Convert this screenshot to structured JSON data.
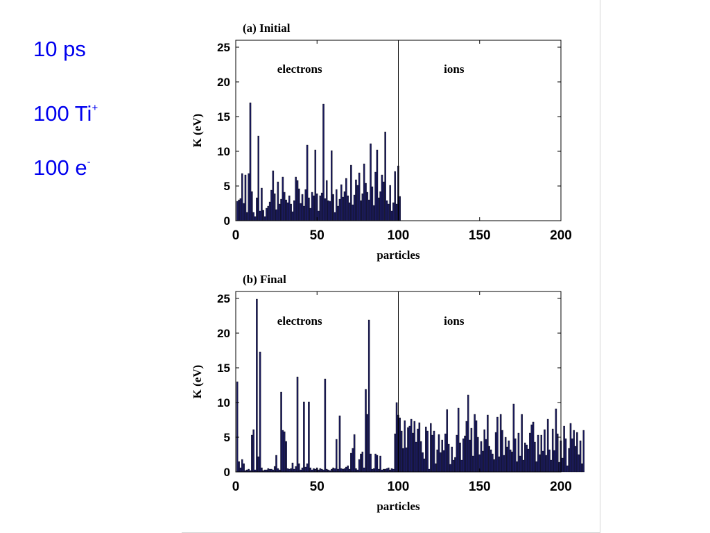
{
  "slide": {
    "text_color": "#0000ee",
    "time": "10 ps",
    "ions": {
      "base": "100 Ti",
      "sup": "+"
    },
    "electrons": {
      "base": "100 e",
      "sup": "-"
    }
  },
  "chart_style": {
    "bar_color": "#1a1a5e",
    "axis_color": "#000000"
  },
  "chart_data": [
    {
      "type": "bar",
      "title": "(a) Initial",
      "xlabel": "particles",
      "ylabel": "K (eV)",
      "xlim": [
        0,
        200
      ],
      "ylim": [
        0,
        26
      ],
      "xticks": [
        0,
        50,
        100,
        150,
        200
      ],
      "yticks": [
        0,
        5,
        10,
        15,
        20,
        25
      ],
      "annotations": [
        "electrons",
        "ions"
      ],
      "divider_x": 100,
      "x_start": 1,
      "values": [
        2.8,
        3.0,
        3.2,
        6.8,
        2.5,
        6.6,
        1.2,
        6.8,
        17.0,
        4.2,
        1.2,
        0.6,
        3.3,
        12.2,
        1.4,
        4.7,
        1.5,
        0.6,
        1.8,
        2.1,
        2.7,
        4.4,
        7.2,
        3.9,
        1.6,
        5.6,
        2.4,
        3.1,
        6.3,
        4.1,
        3.0,
        2.6,
        3.6,
        2.4,
        1.3,
        2.9,
        6.3,
        5.8,
        4.6,
        2.5,
        3.8,
        2.1,
        4.5,
        10.9,
        3.3,
        1.8,
        4.1,
        3.6,
        10.2,
        3.9,
        1.4,
        3.6,
        4.0,
        16.8,
        3.2,
        5.8,
        2.9,
        2.8,
        10.1,
        3.8,
        1.2,
        4.5,
        2.1,
        3.1,
        5.2,
        3.4,
        4.2,
        6.1,
        3.6,
        2.6,
        8.0,
        2.3,
        3.7,
        5.9,
        5.1,
        6.9,
        2.9,
        3.9,
        8.2,
        5.4,
        4.1,
        3.0,
        11.1,
        4.9,
        2.2,
        7.0,
        10.2,
        3.3,
        4.2,
        6.6,
        5.6,
        12.8,
        2.9,
        2.4,
        5.1,
        1.4,
        2.6,
        7.1,
        2.4,
        7.9,
        3.5
      ]
    },
    {
      "type": "bar",
      "title": "(b) Final",
      "xlabel": "particles",
      "ylabel": "K (eV)",
      "xlim": [
        0,
        200
      ],
      "ylim": [
        0,
        26
      ],
      "xticks": [
        0,
        50,
        100,
        150,
        200
      ],
      "yticks": [
        0,
        5,
        10,
        15,
        20,
        25
      ],
      "annotations": [
        "electrons",
        "ions"
      ],
      "divider_x": 100,
      "x_start": 1,
      "values": [
        13.0,
        1.5,
        0.6,
        1.8,
        1.2,
        0.2,
        0.3,
        0.4,
        0.2,
        5.3,
        6.1,
        0.3,
        24.9,
        2.2,
        17.3,
        0.6,
        0.2,
        0.3,
        0.3,
        0.5,
        0.4,
        0.4,
        0.3,
        0.8,
        2.4,
        0.5,
        0.3,
        11.5,
        6.0,
        5.8,
        4.4,
        0.5,
        0.4,
        0.5,
        1.3,
        0.4,
        0.8,
        13.7,
        1.2,
        0.3,
        0.6,
        10.1,
        0.7,
        1.2,
        10.1,
        0.6,
        0.3,
        0.5,
        0.4,
        0.6,
        0.3,
        0.5,
        0.4,
        0.3,
        13.4,
        0.4,
        0.3,
        0.2,
        0.4,
        0.6,
        0.5,
        4.7,
        0.4,
        8.1,
        0.5,
        0.4,
        0.5,
        0.7,
        0.9,
        0.4,
        2.7,
        3.4,
        5.4,
        0.5,
        0.3,
        1.8,
        2.6,
        2.9,
        0.6,
        11.9,
        8.3,
        21.9,
        2.6,
        0.4,
        0.5,
        2.6,
        2.4,
        0.4,
        2.3,
        0.3,
        0.4,
        0.4,
        0.5,
        0.6,
        0.3,
        0.5,
        0.4,
        5.5,
        10.0,
        8.2,
        7.8,
        5.9,
        3.4,
        7.4,
        3.5,
        6.4,
        6.6,
        7.6,
        5.6,
        7.3,
        4.3,
        6.2,
        7.1,
        4.4,
        2.8,
        1.9,
        6.5,
        5.9,
        0.4,
        7.0,
        5.3,
        5.9,
        1.2,
        3.2,
        5.4,
        2.8,
        4.6,
        3.1,
        5.5,
        9.0,
        4.0,
        1.1,
        3.6,
        1.7,
        2.1,
        5.3,
        9.2,
        4.2,
        1.7,
        4.8,
        5.2,
        7.3,
        11.1,
        4.6,
        6.3,
        2.3,
        8.3,
        7.4,
        5.0,
        2.5,
        4.4,
        3.0,
        6.1,
        4.7,
        8.2,
        3.7,
        3.2,
        2.6,
        1.8,
        5.7,
        7.9,
        2.2,
        8.3,
        6.0,
        2.4,
        5.0,
        3.6,
        4.5,
        3.2,
        2.9,
        9.8,
        4.8,
        1.5,
        5.6,
        2.3,
        8.3,
        1.7,
        4.2,
        3.9,
        3.3,
        5.6,
        6.8,
        7.2,
        4.3,
        1.5,
        5.3,
        2.5,
        5.3,
        3.0,
        6.1,
        2.4,
        7.6,
        3.2,
        1.7,
        6.2,
        3.1,
        9.1,
        5.5,
        1.4,
        4.5,
        2.0,
        6.6,
        4.8,
        0.9,
        3.4,
        7.0,
        4.8,
        6.0,
        3.7,
        5.7,
        2.5,
        4.5,
        1.2,
        6.0
      ]
    }
  ]
}
